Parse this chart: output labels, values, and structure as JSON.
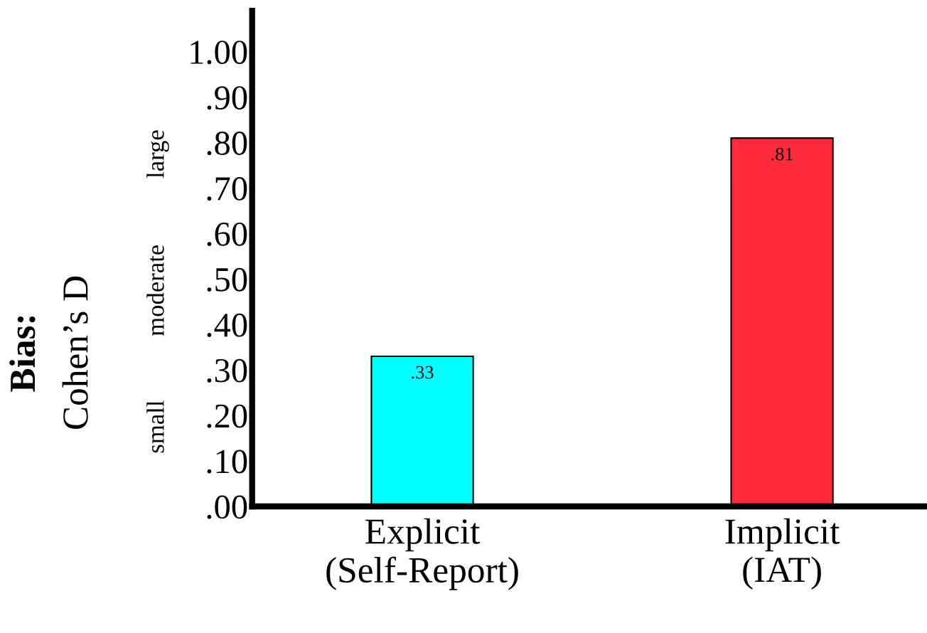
{
  "chart_data": {
    "type": "bar",
    "ylabel": "Bias:\nCohen’s D",
    "categories": [
      "Explicit\n(Self-Report)",
      "Implicit\n(IAT)"
    ],
    "values": [
      0.33,
      0.81
    ],
    "colors": [
      "#00ffff",
      "#ff2a3a"
    ],
    "value_labels": [
      ".33",
      ".81"
    ],
    "ylim": [
      0,
      1.09
    ],
    "yticks": [
      {
        "value": 0,
        "label": ".00"
      },
      {
        "value": 0.1,
        "label": ".10"
      },
      {
        "value": 0.2,
        "label": ".20"
      },
      {
        "value": 0.3,
        "label": ".30"
      },
      {
        "value": 0.4,
        "label": ".40"
      },
      {
        "value": 0.5,
        "label": ".50"
      },
      {
        "value": 0.6,
        "label": ".60"
      },
      {
        "value": 0.7,
        "label": ".70"
      },
      {
        "value": 0.8,
        "label": ".80"
      },
      {
        "value": 0.9,
        "label": ".90"
      },
      {
        "value": 1.0,
        "label": "1.00"
      }
    ],
    "annotations": [
      "small",
      "moderate",
      "large"
    ],
    "grid": false,
    "legend": false
  }
}
